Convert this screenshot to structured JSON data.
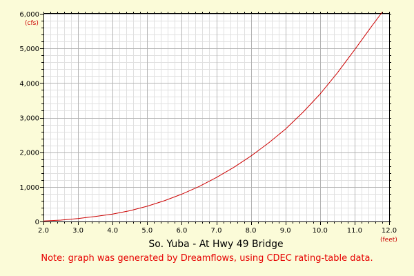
{
  "colors": {
    "background": "#fbfbd8",
    "plot_background": "#ffffff",
    "major_grid": "#b3b3b3",
    "minor_grid": "#e0e0e0",
    "axis": "#000000",
    "curve": "#cc0000",
    "note": "#e60000",
    "unit_label": "#cc0000",
    "title": "#000000"
  },
  "chart_data": {
    "type": "line",
    "title": "So. Yuba - At Hwy 49 Bridge",
    "note": "Note: graph was generated by Dreamflows, using CDEC rating-table data.",
    "xunit": "(feet)",
    "yunit": "(cfs)",
    "xlim": [
      2.0,
      12.0
    ],
    "ylim": [
      0,
      6000
    ],
    "x_ticks": [
      2.0,
      3.0,
      4.0,
      5.0,
      6.0,
      7.0,
      8.0,
      9.0,
      10.0,
      11.0,
      12.0
    ],
    "x_tick_labels": [
      "2.0",
      "3.0",
      "4.0",
      "5.0",
      "6.0",
      "7.0",
      "8.0",
      "9.0",
      "10.0",
      "11.0",
      "12.0"
    ],
    "y_ticks": [
      0,
      1000,
      2000,
      3000,
      4000,
      5000,
      6000
    ],
    "y_tick_labels": [
      "0",
      "1,000",
      "2,000",
      "3,000",
      "4,000",
      "5,000",
      "6,000"
    ],
    "grid": true,
    "minor_x_step": 0.2,
    "minor_y_step": 200,
    "series": [
      {
        "x": [
          2.0,
          2.5,
          3.0,
          3.5,
          4.0,
          4.5,
          5.0,
          5.5,
          6.0,
          6.5,
          7.0,
          7.5,
          8.0,
          8.5,
          9.0,
          9.5,
          10.0,
          10.5,
          11.0,
          11.5,
          11.8
        ],
        "y": [
          15,
          40,
          85,
          145,
          215,
          310,
          440,
          600,
          790,
          1010,
          1270,
          1560,
          1890,
          2260,
          2670,
          3150,
          3680,
          4290,
          4960,
          5650,
          6050
        ]
      }
    ]
  }
}
